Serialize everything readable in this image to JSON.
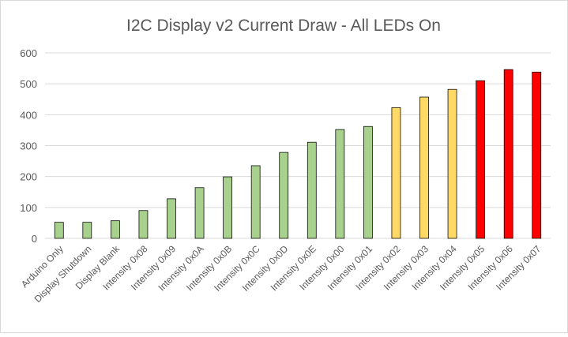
{
  "chart_data": {
    "type": "bar",
    "title": "I2C Display v2 Current Draw - All LEDs On",
    "xlabel": "",
    "ylabel": "",
    "ylim": [
      0,
      600
    ],
    "yticks": [
      0,
      100,
      200,
      300,
      400,
      500,
      600
    ],
    "grid": true,
    "legend": "none",
    "categories": [
      "Arduino Only",
      "Display Shutdown",
      "Display Blank",
      "Intensity 0x08",
      "Intensity 0x09",
      "Intensity 0x0A",
      "Intensity 0x0B",
      "Intensity 0x0C",
      "Intensity 0x0D",
      "Intensity 0x0E",
      "Intensity 0x00",
      "Intensity 0x01",
      "Intensity 0x02",
      "Intensity 0x03",
      "Intensity 0x04",
      "Intensity 0x05",
      "Intensity 0x06",
      "Intensity 0x07"
    ],
    "values": [
      52,
      52,
      57,
      90,
      128,
      164,
      199,
      235,
      278,
      311,
      352,
      362,
      423,
      457,
      482,
      510,
      546,
      538
    ],
    "bar_colors": [
      "#a9d18e",
      "#a9d18e",
      "#a9d18e",
      "#a9d18e",
      "#a9d18e",
      "#a9d18e",
      "#a9d18e",
      "#a9d18e",
      "#a9d18e",
      "#a9d18e",
      "#a9d18e",
      "#a9d18e",
      "#ffd966",
      "#ffd966",
      "#ffd966",
      "#ff0000",
      "#ff0000",
      "#ff0000"
    ],
    "colors": {
      "title": "#595959",
      "tick": "#595959",
      "grid": "#d9d9d9",
      "bar_outline": "#000000",
      "border": "#d9d9d9"
    }
  }
}
